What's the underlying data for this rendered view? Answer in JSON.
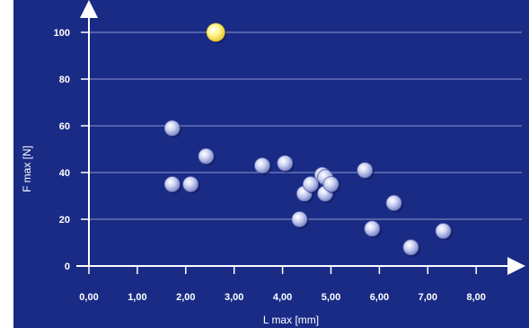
{
  "chart_data": {
    "type": "scatter",
    "xlabel": "L max [mm]",
    "ylabel": "F max [N]",
    "xlim": [
      0,
      9
    ],
    "ylim": [
      0,
      110
    ],
    "grid": {
      "horizontal": true,
      "vertical": false
    },
    "x_ticks": [
      {
        "value": 0,
        "label": "0,00"
      },
      {
        "value": 1,
        "label": "1,00"
      },
      {
        "value": 2,
        "label": "2,00"
      },
      {
        "value": 3,
        "label": "3,00"
      },
      {
        "value": 4,
        "label": "4,00"
      },
      {
        "value": 5,
        "label": "5,00"
      },
      {
        "value": 6,
        "label": "6,00"
      },
      {
        "value": 7,
        "label": "7,00"
      },
      {
        "value": 8,
        "label": "8,00"
      }
    ],
    "y_ticks": [
      {
        "value": 0,
        "label": "0"
      },
      {
        "value": 20,
        "label": "20"
      },
      {
        "value": 40,
        "label": "40"
      },
      {
        "value": 60,
        "label": "60"
      },
      {
        "value": 80,
        "label": "80"
      },
      {
        "value": 100,
        "label": "100"
      }
    ],
    "series": [
      {
        "color": "#b8c0e8",
        "points": [
          {
            "x": 1.72,
            "y": 59
          },
          {
            "x": 1.72,
            "y": 35
          },
          {
            "x": 2.1,
            "y": 35
          },
          {
            "x": 2.42,
            "y": 47
          },
          {
            "x": 3.58,
            "y": 43
          },
          {
            "x": 4.05,
            "y": 44
          },
          {
            "x": 4.35,
            "y": 20
          },
          {
            "x": 4.45,
            "y": 31
          },
          {
            "x": 4.58,
            "y": 35
          },
          {
            "x": 4.82,
            "y": 39
          },
          {
            "x": 4.88,
            "y": 38
          },
          {
            "x": 4.88,
            "y": 31
          },
          {
            "x": 5.0,
            "y": 35
          },
          {
            "x": 5.7,
            "y": 41
          },
          {
            "x": 5.85,
            "y": 16
          },
          {
            "x": 6.3,
            "y": 27
          },
          {
            "x": 6.65,
            "y": 8
          },
          {
            "x": 7.32,
            "y": 15
          }
        ]
      },
      {
        "color": "#fff27a",
        "points": [
          {
            "x": 2.62,
            "y": 100
          }
        ]
      }
    ]
  }
}
